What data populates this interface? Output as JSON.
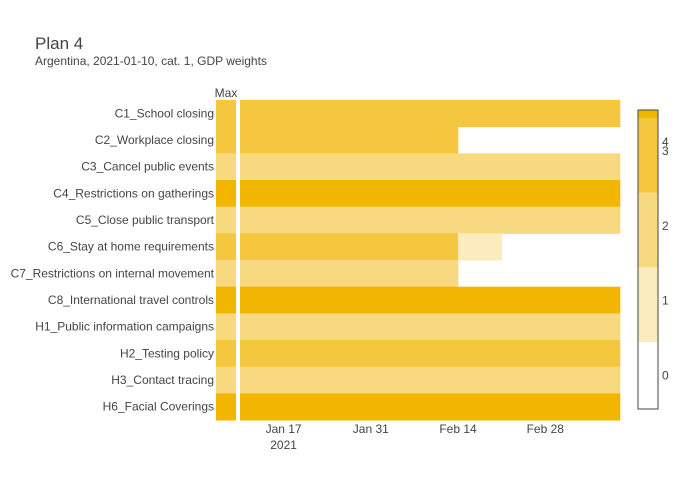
{
  "title": "Plan 4",
  "subtitle": "Argentina, 2021-01-10, cat. 1, GDP weights",
  "chart_data": {
    "type": "heatmap",
    "max_column_label": "Max",
    "rows": [
      "C1_School closing",
      "C2_Workplace closing",
      "C3_Cancel public events",
      "C4_Restrictions on gatherings",
      "C5_Close public transport",
      "C6_Stay at home requirements",
      "C7_Restrictions on internal movement",
      "C8_International travel controls",
      "H1_Public information campaigns",
      "H2_Testing policy",
      "H3_Contact tracing",
      "H6_Facial Coverings"
    ],
    "max_values": [
      3,
      3,
      2,
      4,
      2,
      3,
      2,
      4,
      2,
      3,
      2,
      4
    ],
    "x_start": "2021-01-10",
    "x_end": "2021-03-12",
    "segments": [
      [
        {
          "from": "2021-01-10",
          "to": "2021-03-12",
          "value": 3
        }
      ],
      [
        {
          "from": "2021-01-10",
          "to": "2021-02-14",
          "value": 3
        }
      ],
      [
        {
          "from": "2021-01-10",
          "to": "2021-03-12",
          "value": 2
        }
      ],
      [
        {
          "from": "2021-01-10",
          "to": "2021-03-12",
          "value": 4
        }
      ],
      [
        {
          "from": "2021-01-10",
          "to": "2021-03-12",
          "value": 2
        }
      ],
      [
        {
          "from": "2021-01-10",
          "to": "2021-02-14",
          "value": 3
        },
        {
          "from": "2021-02-14",
          "to": "2021-02-21",
          "value": 1
        }
      ],
      [
        {
          "from": "2021-01-10",
          "to": "2021-02-14",
          "value": 2
        }
      ],
      [
        {
          "from": "2021-01-10",
          "to": "2021-03-12",
          "value": 4
        }
      ],
      [
        {
          "from": "2021-01-10",
          "to": "2021-03-12",
          "value": 2
        }
      ],
      [
        {
          "from": "2021-01-10",
          "to": "2021-03-12",
          "value": 3
        }
      ],
      [
        {
          "from": "2021-01-10",
          "to": "2021-03-12",
          "value": 2
        }
      ],
      [
        {
          "from": "2021-01-10",
          "to": "2021-03-12",
          "value": 4
        }
      ]
    ],
    "x_ticks": [
      {
        "date": "2021-01-17",
        "label": "Jan 17"
      },
      {
        "date": "2021-01-31",
        "label": "Jan 31"
      },
      {
        "date": "2021-02-14",
        "label": "Feb 14"
      },
      {
        "date": "2021-02-28",
        "label": "Feb 28"
      }
    ],
    "x_year_label": "2021",
    "colorscale": [
      {
        "value": 0,
        "color": "#ffffff"
      },
      {
        "value": 1,
        "color": "#fcebbd"
      },
      {
        "value": 2,
        "color": "#f7d97f"
      },
      {
        "value": 3,
        "color": "#f5c73e"
      },
      {
        "value": 4,
        "color": "#f2b600"
      }
    ],
    "colorbar_ticks": [
      "0",
      "1",
      "2",
      "3",
      "4"
    ],
    "zlim": [
      0,
      4
    ]
  }
}
